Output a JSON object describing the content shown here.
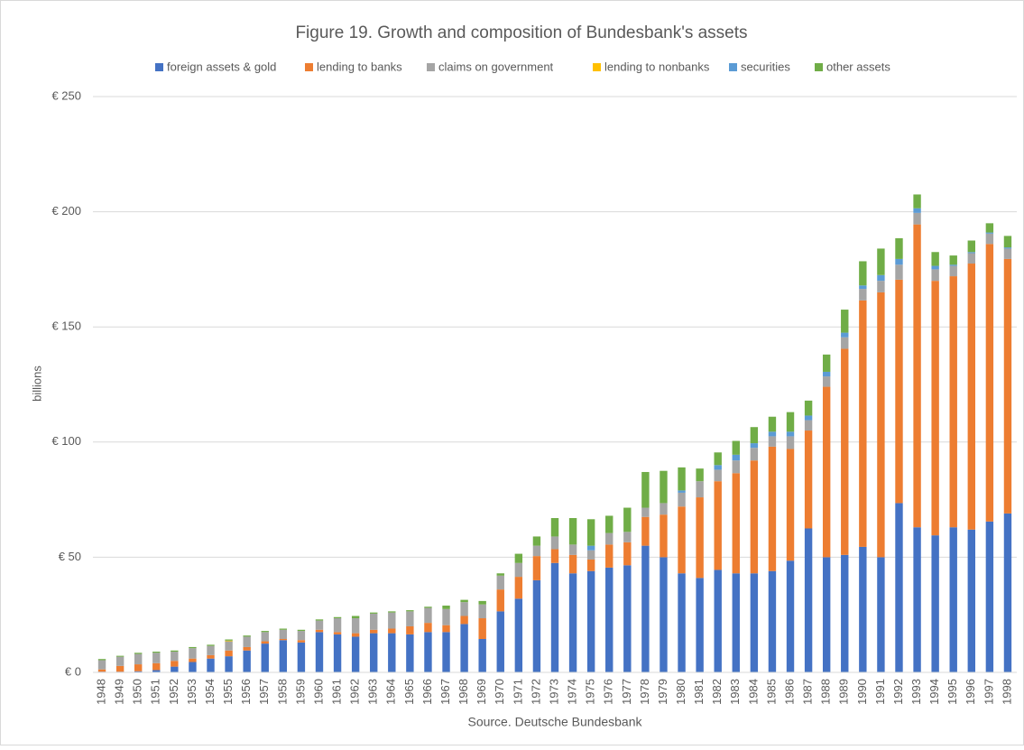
{
  "chart_data": {
    "type": "stacked_bar",
    "title": "Figure 19. Growth and composition of Bundesbank's assets",
    "y_label": "billions",
    "source": "Source. Deutsche Bundesbank",
    "categories": [
      "1948",
      "1949",
      "1950",
      "1951",
      "1952",
      "1953",
      "1954",
      "1955",
      "1956",
      "1957",
      "1958",
      "1959",
      "1960",
      "1961",
      "1962",
      "1963",
      "1964",
      "1965",
      "1966",
      "1967",
      "1968",
      "1969",
      "1970",
      "1971",
      "1972",
      "1973",
      "1974",
      "1975",
      "1976",
      "1977",
      "1978",
      "1979",
      "1980",
      "1981",
      "1982",
      "1983",
      "1984",
      "1985",
      "1986",
      "1987",
      "1988",
      "1989",
      "1990",
      "1991",
      "1992",
      "1993",
      "1994",
      "1995",
      "1996",
      "1997",
      "1998"
    ],
    "series": [
      {
        "name": "foreign assets & gold",
        "color": "#4472c4",
        "values": [
          0.3,
          0.3,
          0.5,
          1,
          2.5,
          4.5,
          6,
          7,
          9.5,
          12.5,
          14,
          13,
          17.5,
          16.5,
          15.5,
          17,
          17,
          16.5,
          17.5,
          17.5,
          21,
          14.5,
          26.5,
          32,
          40,
          47.5,
          43,
          44,
          45.5,
          46.5,
          55,
          50,
          43,
          41,
          44.5,
          43,
          43,
          44,
          48.5,
          62.5,
          50,
          51,
          54.5,
          50,
          73.5,
          63,
          59.5,
          63,
          62,
          65.5,
          69
        ]
      },
      {
        "name": "lending to banks",
        "color": "#ed7d31",
        "values": [
          1,
          2.5,
          3,
          3,
          2.5,
          1.5,
          1.5,
          2.5,
          1.5,
          1,
          0.5,
          1,
          1,
          1,
          1.5,
          1.5,
          2,
          3.5,
          4,
          3,
          3.5,
          9,
          9.5,
          9.5,
          10.5,
          6,
          8,
          5,
          10,
          10,
          12.5,
          18.5,
          29,
          35,
          38.5,
          43.5,
          49,
          54,
          48.5,
          42.5,
          74,
          89.5,
          107,
          115,
          97,
          131.5,
          110.5,
          109,
          115.5,
          120.5,
          110.5
        ]
      },
      {
        "name": "claims on government",
        "color": "#a5a5a5",
        "values": [
          4,
          4,
          4.5,
          4.5,
          4,
          4.5,
          4,
          4,
          4.5,
          4,
          4,
          4,
          4,
          6,
          6.5,
          7,
          7,
          6.5,
          6.5,
          7,
          6,
          6,
          6,
          6,
          4.5,
          5.5,
          4.5,
          4,
          5,
          4.5,
          4,
          5,
          6,
          7,
          5,
          5.5,
          5.5,
          4.5,
          5.5,
          4.5,
          4.5,
          5,
          5,
          5,
          6.5,
          5,
          5,
          4.5,
          4.5,
          4.5,
          4.5
        ]
      },
      {
        "name": "lending to nonbanks",
        "color": "#ffc000",
        "values": [
          0,
          0,
          0,
          0,
          0,
          0,
          0,
          0.3,
          0,
          0,
          0,
          0,
          0,
          0,
          0,
          0,
          0,
          0,
          0,
          0,
          0,
          0,
          0,
          0,
          0,
          0,
          0,
          0,
          0,
          0,
          0,
          0,
          0,
          0,
          0,
          0,
          0,
          0,
          0,
          0,
          0,
          0,
          0,
          0,
          0,
          0,
          0,
          0,
          0,
          0,
          0
        ]
      },
      {
        "name": "securities",
        "color": "#5b9bd5",
        "values": [
          0,
          0,
          0,
          0,
          0,
          0,
          0,
          0,
          0,
          0,
          0,
          0,
          0,
          0,
          0,
          0,
          0,
          0,
          0,
          0,
          0,
          0,
          0,
          0,
          0,
          0,
          0,
          2,
          0,
          0,
          0,
          0,
          1,
          0,
          2,
          2.5,
          2,
          2,
          2,
          2,
          2,
          2,
          1.5,
          2.5,
          2.5,
          2,
          1.5,
          0.5,
          0.5,
          0.5,
          0.5
        ]
      },
      {
        "name": "other assets",
        "color": "#70ad47",
        "values": [
          0.5,
          0.4,
          0.5,
          0.5,
          0.5,
          0.5,
          0.5,
          0.5,
          0.5,
          0.5,
          0.5,
          0.5,
          0.5,
          0.5,
          1,
          0.5,
          0.5,
          0.5,
          0.5,
          1.5,
          1,
          1.5,
          1,
          4,
          4,
          8,
          11.5,
          11.5,
          7.5,
          10.5,
          15.5,
          14,
          10,
          5.5,
          5.5,
          6,
          7,
          6.5,
          8.5,
          6.5,
          7.5,
          10,
          10.5,
          11.5,
          9,
          6,
          6,
          4,
          5,
          4,
          5
        ]
      }
    ],
    "ylim": [
      0,
      250
    ],
    "yticks": [
      {
        "value": 0,
        "label": "€ 0"
      },
      {
        "value": 50,
        "label": "€ 50"
      },
      {
        "value": 100,
        "label": "€ 100"
      },
      {
        "value": 150,
        "label": "€ 150"
      },
      {
        "value": 200,
        "label": "€ 200"
      },
      {
        "value": 250,
        "label": "€ 250"
      }
    ],
    "grid": true,
    "legend": "top"
  }
}
